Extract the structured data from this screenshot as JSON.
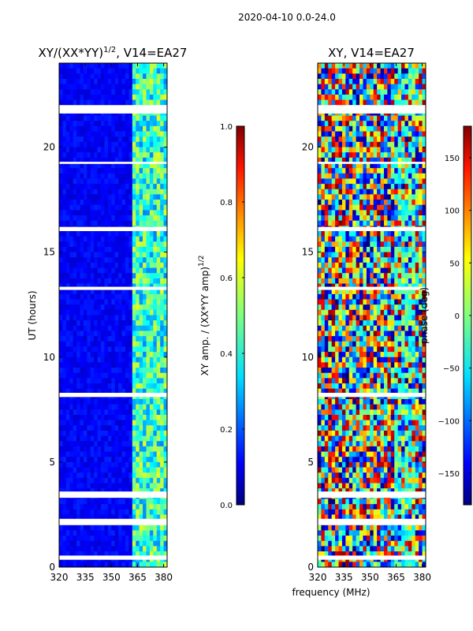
{
  "figure": {
    "suptitle": "2020-04-10 0.0-24.0",
    "xlabel": "frequency (MHz)"
  },
  "chart_data": [
    {
      "type": "heatmap",
      "title_base": "XY/(XX*YY)",
      "title_exponent": "1/2",
      "title_suffix": ", V14=EA27",
      "xlabel": "",
      "ylabel": "UT (hours)",
      "xlim": [
        320,
        382
      ],
      "ylim": [
        0,
        24
      ],
      "xticks": [
        320,
        335,
        350,
        365,
        380
      ],
      "yticks": [
        0,
        5,
        10,
        15,
        20
      ],
      "colormap": "jet",
      "colorbar": {
        "label_base": "XY amp. / (XX*YY amp)",
        "label_exponent": "1/2",
        "range": [
          0.0,
          1.0
        ],
        "ticks": [
          "0.0",
          "0.2",
          "0.4",
          "0.6",
          "0.8",
          "1.0"
        ],
        "tick_values": [
          0.0,
          0.2,
          0.4,
          0.6,
          0.8,
          1.0
        ]
      },
      "flagged_hours": [
        [
          0.35,
          0.55
        ],
        [
          2.0,
          2.3
        ],
        [
          3.3,
          3.6
        ],
        [
          8.1,
          8.3
        ],
        [
          21.6,
          22.0
        ],
        [
          16.0,
          16.2
        ],
        [
          13.2,
          13.35
        ],
        [
          19.2,
          19.3
        ]
      ],
      "rfi_band_mhz": [
        362,
        382
      ]
    },
    {
      "type": "heatmap",
      "title": "XY, V14=EA27",
      "xlabel": "",
      "ylabel": "",
      "xlim": [
        320,
        382
      ],
      "ylim": [
        0,
        24
      ],
      "xticks": [
        320,
        335,
        350,
        365,
        380
      ],
      "yticks": [
        0,
        5,
        10,
        15,
        20
      ],
      "colormap": "jet",
      "colorbar": {
        "label": "phase (deg)",
        "range": [
          -180,
          180
        ],
        "ticks": [
          "150",
          "100",
          "50",
          "0",
          "−50",
          "−100",
          "−150"
        ],
        "tick_values": [
          150,
          100,
          50,
          0,
          -50,
          -100,
          -150
        ]
      },
      "flagged_hours": [
        [
          0.35,
          0.55
        ],
        [
          2.0,
          2.3
        ],
        [
          3.3,
          3.6
        ],
        [
          8.1,
          8.3
        ],
        [
          21.6,
          22.0
        ],
        [
          16.0,
          16.2
        ],
        [
          13.2,
          13.35
        ],
        [
          19.2,
          19.3
        ]
      ]
    }
  ]
}
